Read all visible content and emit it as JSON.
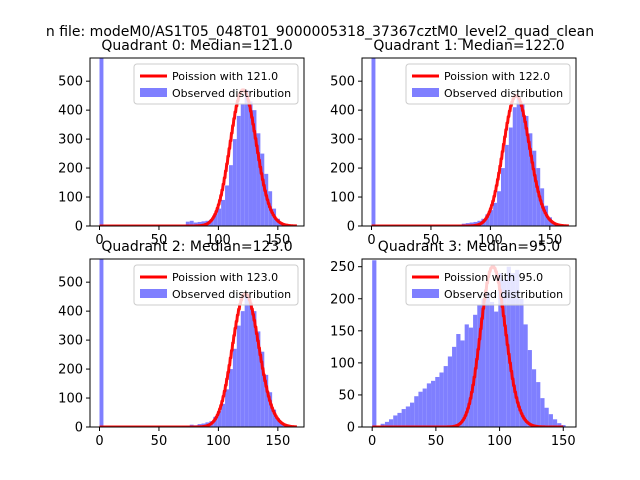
{
  "figure": {
    "suptitle": "n file: modeM0/AS1T05_048T01_9000005318_37367cztM0_level2_quad_clean"
  },
  "colors": {
    "poisson": "#ff0000",
    "observed": "#7f7fff",
    "axes": "#000000"
  },
  "chart_data": [
    {
      "type": "bar",
      "title": "Quadrant 0: Median=121.0",
      "xlim": [
        -8,
        172
      ],
      "ylim": [
        0,
        580
      ],
      "xticks": [
        0,
        50,
        100,
        150
      ],
      "yticks": [
        0,
        100,
        200,
        300,
        400,
        500
      ],
      "legend": {
        "placement": "top-right",
        "entries": [
          "Poission with 121.0",
          "Observed distribution"
        ]
      },
      "bar_width": 3.3,
      "observed": {
        "name": "Observed distribution",
        "x": [
          0,
          3.3,
          6.6,
          10,
          13.2,
          16.5,
          19.8,
          23.1,
          26.4,
          29.7,
          33,
          36.3,
          39.6,
          42.9,
          46.2,
          49.5,
          52.8,
          56.1,
          59.4,
          62.7,
          66,
          69.3,
          72.6,
          75.9,
          79.2,
          82.5,
          85.8,
          89.1,
          92.4,
          95.7,
          99,
          102.3,
          105.6,
          108.9,
          112.2,
          115.5,
          118.8,
          122.1,
          125.4,
          128.7,
          132,
          135.3,
          138.6,
          141.9,
          145.2,
          148.5,
          151.8,
          155.1,
          158.4,
          161.7
        ],
        "values": [
          580,
          0,
          0,
          0,
          0,
          0,
          0,
          0,
          0,
          0,
          0,
          0,
          0,
          0,
          0,
          0,
          0,
          0,
          0,
          0,
          0,
          2,
          15,
          18,
          12,
          14,
          16,
          18,
          22,
          40,
          60,
          90,
          140,
          210,
          300,
          380,
          420,
          470,
          430,
          400,
          320,
          250,
          180,
          120,
          60,
          25,
          10,
          5,
          2,
          1
        ]
      },
      "poisson": {
        "name": "Poission with 121.0",
        "lambda": 121.0,
        "x_range": [
          0,
          166
        ]
      }
    },
    {
      "type": "bar",
      "title": "Quadrant 1: Median=122.0",
      "xlim": [
        -8,
        172
      ],
      "ylim": [
        0,
        580
      ],
      "xticks": [
        0,
        50,
        100,
        150
      ],
      "yticks": [
        0,
        100,
        200,
        300,
        400,
        500
      ],
      "legend": {
        "placement": "top-right",
        "entries": [
          "Poission with 122.0",
          "Observed distribution"
        ]
      },
      "bar_width": 3.3,
      "observed": {
        "name": "Observed distribution",
        "x": [
          0,
          3.3,
          6.6,
          10,
          13.2,
          16.5,
          19.8,
          23.1,
          26.4,
          29.7,
          33,
          36.3,
          39.6,
          42.9,
          46.2,
          49.5,
          52.8,
          56.1,
          59.4,
          62.7,
          66,
          69.3,
          72.6,
          75.9,
          79.2,
          82.5,
          85.8,
          89.1,
          92.4,
          95.7,
          99,
          102.3,
          105.6,
          108.9,
          112.2,
          115.5,
          118.8,
          122.1,
          125.4,
          128.7,
          132,
          135.3,
          138.6,
          141.9,
          145.2,
          148.5,
          151.8,
          155.1,
          158.4,
          161.7
        ],
        "values": [
          580,
          0,
          0,
          0,
          0,
          0,
          0,
          0,
          0,
          0,
          0,
          0,
          0,
          0,
          0,
          0,
          0,
          0,
          0,
          0,
          0,
          0,
          3,
          8,
          10,
          12,
          14,
          18,
          25,
          40,
          55,
          80,
          120,
          200,
          280,
          340,
          410,
          450,
          420,
          380,
          320,
          260,
          200,
          130,
          70,
          30,
          12,
          5,
          2,
          1
        ]
      },
      "poisson": {
        "name": "Poission with 122.0",
        "lambda": 122.0,
        "x_range": [
          0,
          166
        ]
      }
    },
    {
      "type": "bar",
      "title": "Quadrant 2: Median=123.0",
      "xlim": [
        -8,
        172
      ],
      "ylim": [
        0,
        580
      ],
      "xticks": [
        0,
        50,
        100,
        150
      ],
      "yticks": [
        0,
        100,
        200,
        300,
        400,
        500
      ],
      "legend": {
        "placement": "top-right",
        "entries": [
          "Poission with 123.0",
          "Observed distribution"
        ]
      },
      "bar_width": 3.3,
      "observed": {
        "name": "Observed distribution",
        "x": [
          0,
          3.3,
          6.6,
          10,
          13.2,
          16.5,
          19.8,
          23.1,
          26.4,
          29.7,
          33,
          36.3,
          39.6,
          42.9,
          46.2,
          49.5,
          52.8,
          56.1,
          59.4,
          62.7,
          66,
          69.3,
          72.6,
          75.9,
          79.2,
          82.5,
          85.8,
          89.1,
          92.4,
          95.7,
          99,
          102.3,
          105.6,
          108.9,
          112.2,
          115.5,
          118.8,
          122.1,
          125.4,
          128.7,
          132,
          135.3,
          138.6,
          141.9,
          145.2,
          148.5,
          151.8,
          155.1,
          158.4,
          161.7
        ],
        "values": [
          580,
          0,
          0,
          0,
          0,
          0,
          0,
          0,
          0,
          0,
          0,
          0,
          0,
          0,
          0,
          0,
          0,
          0,
          0,
          0,
          0,
          3,
          4,
          8,
          6,
          10,
          12,
          16,
          20,
          35,
          55,
          80,
          130,
          200,
          270,
          350,
          400,
          460,
          430,
          400,
          330,
          260,
          180,
          120,
          60,
          30,
          12,
          5,
          2,
          1
        ]
      },
      "poisson": {
        "name": "Poission with 123.0",
        "lambda": 123.0,
        "x_range": [
          0,
          166
        ]
      }
    },
    {
      "type": "bar",
      "title": "Quadrant 3: Median=95.0",
      "xlim": [
        -8,
        160
      ],
      "ylim": [
        0,
        262
      ],
      "xticks": [
        0,
        50,
        100,
        150
      ],
      "yticks": [
        0,
        50,
        100,
        150,
        200,
        250
      ],
      "legend": {
        "placement": "top-right",
        "entries": [
          "Poission with 95.0",
          "Observed distribution"
        ]
      },
      "bar_width": 3.3,
      "observed": {
        "name": "Observed distribution",
        "x": [
          0,
          3.3,
          6.6,
          10,
          13.2,
          16.5,
          19.8,
          23.1,
          26.4,
          29.7,
          33,
          36.3,
          39.6,
          42.9,
          46.2,
          49.5,
          52.8,
          56.1,
          59.4,
          62.7,
          66,
          69.3,
          72.6,
          75.9,
          79.2,
          82.5,
          85.8,
          89.1,
          92.4,
          95.7,
          99,
          102.3,
          105.6,
          108.9,
          112.2,
          115.5,
          118.8,
          122.1,
          125.4,
          128.7,
          132,
          135.3,
          138.6,
          141.9,
          145.2,
          148.5
        ],
        "values": [
          260,
          0,
          5,
          8,
          12,
          18,
          22,
          28,
          32,
          38,
          48,
          55,
          60,
          68,
          72,
          78,
          85,
          95,
          110,
          125,
          145,
          135,
          160,
          155,
          175,
          190,
          200,
          210,
          195,
          180,
          240,
          230,
          250,
          240,
          245,
          200,
          160,
          120,
          90,
          70,
          45,
          30,
          20,
          12,
          6,
          3
        ]
      },
      "poisson": {
        "name": "Poission with 95.0",
        "lambda": 95.0,
        "x_range": [
          0,
          150
        ]
      }
    }
  ]
}
